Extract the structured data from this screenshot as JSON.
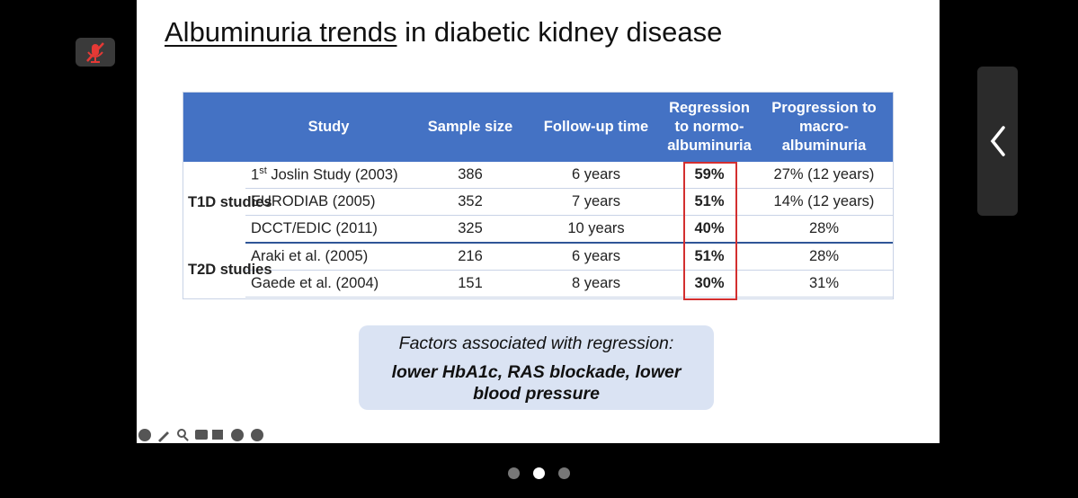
{
  "slide": {
    "title": {
      "underlined": "Albuminuria trends",
      "rest": " in diabetic kidney disease"
    },
    "table": {
      "header": [
        "Study",
        "Sample size",
        "Follow-up time",
        "Regression to normo-albuminuria",
        "Progression to macro-albuminuria"
      ],
      "groups": [
        {
          "label": "T1D studies",
          "rows": [
            {
              "study": [
                "1",
                "st",
                " Joslin Study (2003)"
              ],
              "sample": 386,
              "followup": "6 years",
              "regression": "59%",
              "progression": "27% (12 years)"
            },
            {
              "study": [
                "EURODIAB (2005)"
              ],
              "sample": 352,
              "followup": "7 years",
              "regression": "51%",
              "progression": "14% (12 years)"
            },
            {
              "study": [
                "DCCT/EDIC (2011)"
              ],
              "sample": 325,
              "followup": "10 years",
              "regression": "40%",
              "progression": "28%"
            }
          ]
        },
        {
          "label": "T2D studies",
          "rows": [
            {
              "study": [
                "Araki et al. (2005)"
              ],
              "sample": 216,
              "followup": "6 years",
              "regression": "51%",
              "progression": "28%"
            },
            {
              "study": [
                "Gaede et al. (2004)"
              ],
              "sample": 151,
              "followup": "8 years",
              "regression": "30%",
              "progression": "31%"
            }
          ]
        }
      ]
    },
    "callout": {
      "heading": "Factors associated with regression:",
      "body": "lower HbA1c, RAS blockade, lower blood pressure"
    }
  }
}
